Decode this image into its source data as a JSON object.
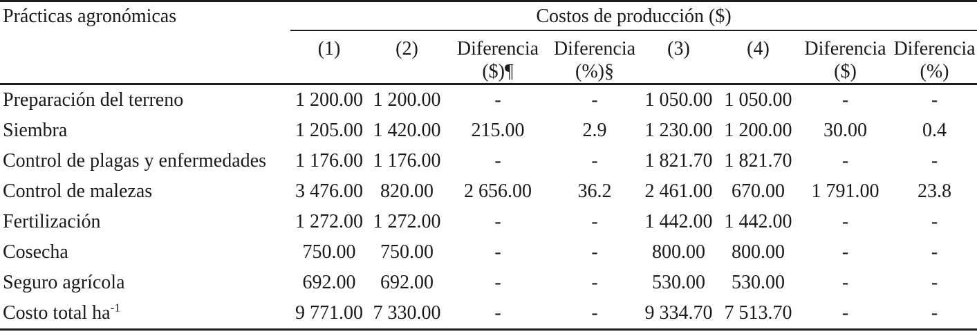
{
  "table": {
    "col1_header": "Prácticas agronómicas",
    "group_header": "Costos de producción ($)",
    "subheaders": [
      {
        "line1": "(1)",
        "line2": ""
      },
      {
        "line1": "(2)",
        "line2": ""
      },
      {
        "line1": "Diferencia",
        "line2": "($)¶"
      },
      {
        "line1": "Diferencia",
        "line2": "(%)§"
      },
      {
        "line1": "(3)",
        "line2": ""
      },
      {
        "line1": "(4)",
        "line2": ""
      },
      {
        "line1": "Diferencia",
        "line2": "($)"
      },
      {
        "line1": "Diferencia",
        "line2": "(%)"
      }
    ],
    "rows": [
      {
        "label": "Preparación del terreno",
        "values": [
          "1 200.00",
          "1 200.00",
          "-",
          "-",
          "1 050.00",
          "1 050.00",
          "-",
          "-"
        ]
      },
      {
        "label": "Siembra",
        "values": [
          "1 205.00",
          "1 420.00",
          "215.00",
          "2.9",
          "1 230.00",
          "1 200.00",
          "30.00",
          "0.4"
        ]
      },
      {
        "label": "Control de plagas y enfermedades",
        "values": [
          "1 176.00",
          "1 176.00",
          "-",
          "-",
          "1 821.70",
          "1 821.70",
          "-",
          "-"
        ]
      },
      {
        "label": "Control de malezas",
        "values": [
          "3 476.00",
          "820.00",
          "2 656.00",
          "36.2",
          "2 461.00",
          "670.00",
          "1 791.00",
          "23.8"
        ]
      },
      {
        "label": "Fertilización",
        "values": [
          "1 272.00",
          "1 272.00",
          "-",
          "-",
          "1 442.00",
          "1 442.00",
          "-",
          "-"
        ]
      },
      {
        "label": "Cosecha",
        "values": [
          "750.00",
          "750.00",
          "-",
          "-",
          "800.00",
          "800.00",
          "-",
          "-"
        ]
      },
      {
        "label": "Seguro agrícola",
        "values": [
          "692.00",
          "692.00",
          "-",
          "-",
          "530.00",
          "530.00",
          "-",
          "-"
        ]
      },
      {
        "label": "Costo total ha",
        "label_sup": "-1",
        "values": [
          "9 771.00",
          "7 330.00",
          "-",
          "-",
          "9 334.70",
          "7 513.70",
          "-",
          "-"
        ]
      }
    ],
    "colors": {
      "text": "#1a1a1a",
      "rule": "#1a1a1a",
      "background": "#ffffff"
    }
  }
}
